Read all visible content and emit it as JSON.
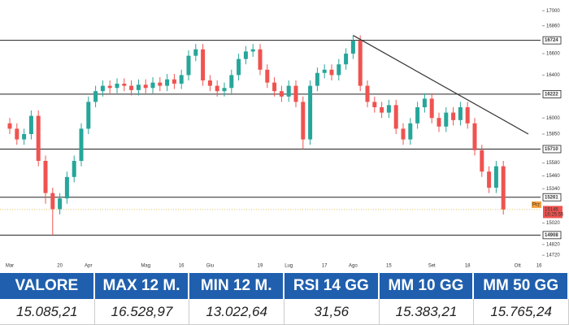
{
  "chart_data": {
    "type": "candlestick",
    "categories": [
      "Mar",
      null,
      null,
      null,
      null,
      null,
      null,
      "20",
      null,
      null,
      null,
      "Apr",
      null,
      null,
      null,
      null,
      null,
      null,
      null,
      "Mag",
      null,
      null,
      null,
      null,
      "16",
      null,
      null,
      null,
      "Giu",
      null,
      null,
      null,
      null,
      null,
      null,
      "19",
      null,
      null,
      null,
      "Lug",
      null,
      null,
      null,
      null,
      "17",
      null,
      null,
      null,
      "Ago",
      null,
      null,
      null,
      null,
      "15",
      null,
      null,
      null,
      null,
      null,
      "Set",
      null,
      null,
      null,
      null,
      "18",
      null,
      null,
      null,
      null,
      null,
      null,
      "Ott",
      null,
      null,
      "16"
    ],
    "open": [
      15950,
      15900,
      15800,
      15850,
      16020,
      15600,
      15300,
      15150,
      15250,
      15450,
      15600,
      15900,
      16150,
      16250,
      16300,
      16280,
      16320,
      16300,
      16260,
      16310,
      16280,
      16330,
      16300,
      16360,
      16320,
      16400,
      16580,
      16640,
      16350,
      16300,
      16250,
      16280,
      16400,
      16550,
      16620,
      16640,
      16450,
      16330,
      16250,
      16200,
      16300,
      16150,
      15800,
      16300,
      16420,
      16450,
      16400,
      16500,
      16600,
      16720,
      16300,
      16150,
      16100,
      16050,
      16120,
      15900,
      15800,
      15950,
      16100,
      16180,
      16000,
      15920,
      16050,
      15980,
      16100,
      15950,
      15700,
      15500,
      15350,
      15550,
      null,
      null,
      null,
      null,
      null
    ],
    "high": [
      16000,
      15950,
      15900,
      16070,
      16070,
      15650,
      15350,
      15300,
      15500,
      15650,
      15950,
      16200,
      16300,
      16350,
      16350,
      16370,
      16370,
      16350,
      16360,
      16360,
      16380,
      16380,
      16410,
      16410,
      16450,
      16630,
      16690,
      16690,
      16400,
      16350,
      16330,
      16450,
      16600,
      16670,
      16690,
      16690,
      16500,
      16380,
      16300,
      16350,
      16350,
      16200,
      16350,
      16470,
      16500,
      16500,
      16550,
      16650,
      16770,
      16770,
      16350,
      16200,
      16150,
      16170,
      16170,
      15950,
      16000,
      16150,
      16230,
      16230,
      16050,
      16100,
      16100,
      16150,
      16150,
      16000,
      15750,
      15550,
      15600,
      15600,
      null,
      null,
      null,
      null,
      null
    ],
    "low": [
      15850,
      15750,
      15750,
      15800,
      15550,
      15200,
      14908,
      15100,
      15200,
      15400,
      15550,
      15850,
      16100,
      16200,
      16230,
      16230,
      16250,
      16210,
      16210,
      16230,
      16230,
      16250,
      16250,
      16270,
      16270,
      16350,
      16530,
      16300,
      16250,
      16200,
      16200,
      16230,
      16350,
      16500,
      16570,
      16400,
      16280,
      16200,
      16150,
      16150,
      16100,
      15710,
      15750,
      16250,
      16370,
      16350,
      16350,
      16450,
      16550,
      16250,
      16100,
      16050,
      16000,
      16000,
      15850,
      15750,
      15750,
      15900,
      16050,
      15950,
      15870,
      15870,
      15930,
      15930,
      15900,
      15650,
      15450,
      15300,
      15300,
      15100,
      null,
      null,
      null,
      null,
      null
    ],
    "close": [
      15900,
      15800,
      15850,
      16020,
      15600,
      15300,
      15150,
      15250,
      15450,
      15600,
      15900,
      16150,
      16250,
      16300,
      16280,
      16320,
      16300,
      16260,
      16310,
      16280,
      16330,
      16300,
      16360,
      16320,
      16400,
      16580,
      16640,
      16350,
      16300,
      16250,
      16280,
      16400,
      16550,
      16620,
      16640,
      16450,
      16330,
      16250,
      16200,
      16300,
      16150,
      15800,
      16300,
      16420,
      16450,
      16400,
      16500,
      16600,
      16720,
      16300,
      16150,
      16100,
      16050,
      16120,
      15900,
      15800,
      15950,
      16100,
      16180,
      16000,
      15920,
      16050,
      15980,
      16100,
      15950,
      15700,
      15500,
      15350,
      15550,
      15146,
      null,
      null,
      null,
      null,
      null
    ],
    "up_color": "#26a69a",
    "down_color": "#ef5350",
    "ylim": [
      14600,
      17100
    ],
    "yticks": [
      17000,
      16860,
      16600,
      16400,
      16000,
      15850,
      15580,
      15460,
      15340,
      15020,
      14820,
      14720
    ],
    "levels": [
      16724,
      16222,
      15710,
      15261,
      14908
    ],
    "trendline": [
      16770,
      15850
    ],
    "last_price": 15146,
    "last_price_tag": "Prz",
    "countdown": "16:25:55"
  },
  "table": {
    "headers": [
      "VALORE",
      "MAX 12 M.",
      "MIN 12 M.",
      "RSI 14 GG",
      "MM 10 GG",
      "MM 50 GG"
    ],
    "values": [
      "15.085,21",
      "16.528,97",
      "13.022,64",
      "31,56",
      "15.383,21",
      "15.765,24"
    ]
  }
}
